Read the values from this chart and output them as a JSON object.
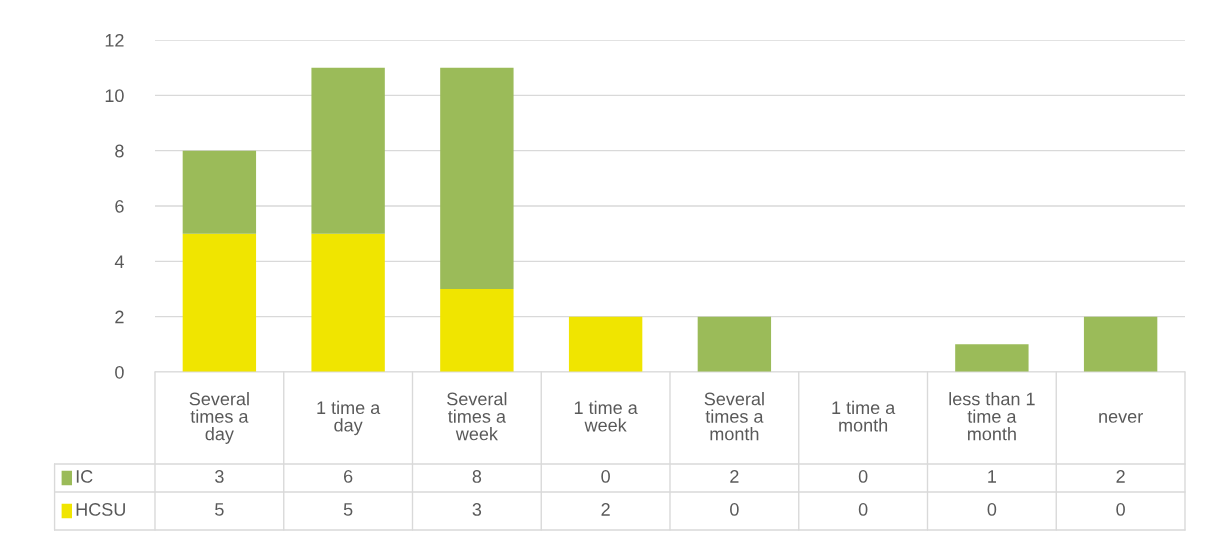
{
  "chart_data": {
    "type": "bar",
    "stacked": true,
    "categories": [
      "Several times a day",
      "1 time a day",
      "Several times a week",
      "1 time a week",
      "Several times a month",
      "1 time a month",
      "less than 1 time a month",
      "never"
    ],
    "series": [
      {
        "name": "HCSU",
        "color": "#f0e500",
        "values": [
          5,
          5,
          3,
          2,
          0,
          0,
          0,
          0
        ]
      },
      {
        "name": "IC",
        "color": "#9bbb59",
        "values": [
          3,
          6,
          8,
          0,
          2,
          0,
          1,
          2
        ]
      }
    ],
    "ylim": [
      0,
      12
    ],
    "yticks": [
      0,
      2,
      4,
      6,
      8,
      10,
      12
    ],
    "grid": "y",
    "legend": "bottom left",
    "data_labels": true
  }
}
